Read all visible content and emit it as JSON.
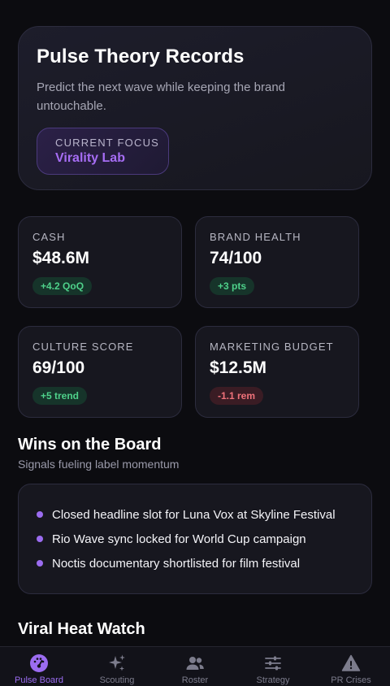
{
  "hero": {
    "title": "Pulse Theory Records",
    "subtitle": "Predict the next wave while keeping the brand untouchable.",
    "focus_label": "CURRENT FOCUS",
    "focus_value": "Virality Lab"
  },
  "stats": [
    {
      "label": "CASH",
      "value": "$48.6M",
      "delta": "+4.2 QoQ",
      "trend": "up"
    },
    {
      "label": "BRAND HEALTH",
      "value": "74/100",
      "delta": "+3 pts",
      "trend": "up"
    },
    {
      "label": "CULTURE SCORE",
      "value": "69/100",
      "delta": "+5 trend",
      "trend": "up"
    },
    {
      "label": "MARKETING BUDGET",
      "value": "$12.5M",
      "delta": "-1.1 rem",
      "trend": "down"
    }
  ],
  "wins": {
    "title": "Wins on the Board",
    "subtitle": "Signals fueling label momentum",
    "items": [
      "Closed headline slot for Luna Vox at Skyline Festival",
      "Rio Wave sync locked for World Cup campaign",
      "Noctis documentary shortlisted for film festival"
    ]
  },
  "viral": {
    "title": "Viral Heat Watch"
  },
  "tabs": [
    {
      "label": "Pulse Board",
      "icon": "gauge-icon",
      "active": true
    },
    {
      "label": "Scouting",
      "icon": "sparkles-icon",
      "active": false
    },
    {
      "label": "Roster",
      "icon": "users-icon",
      "active": false
    },
    {
      "label": "Strategy",
      "icon": "sliders-icon",
      "active": false
    },
    {
      "label": "PR Crises",
      "icon": "warning-icon",
      "active": false
    }
  ],
  "colors": {
    "accent": "#9b6cf0",
    "positive": "#4ed18a",
    "negative": "#f0727a",
    "background": "#0c0c10",
    "card": "#17171f"
  }
}
